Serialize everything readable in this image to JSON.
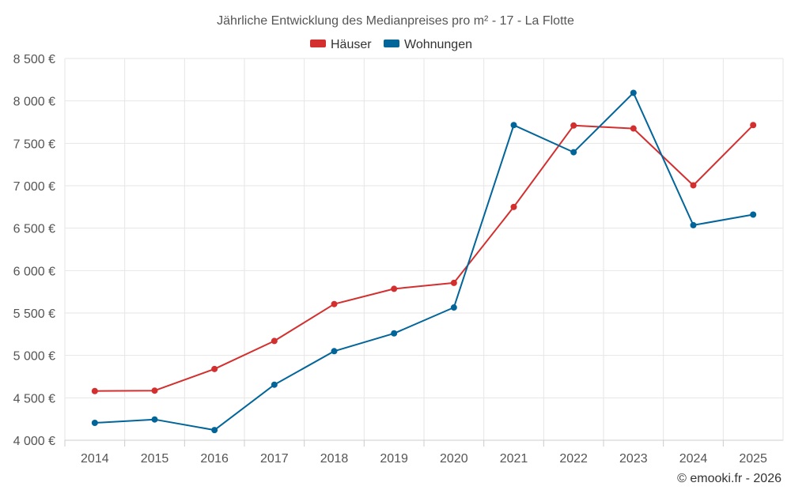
{
  "chart_data": {
    "type": "line",
    "title": "Jährliche Entwicklung des Medianpreises pro m² - 17 - La Flotte",
    "categories": [
      "2014",
      "2015",
      "2016",
      "2017",
      "2018",
      "2019",
      "2020",
      "2021",
      "2022",
      "2023",
      "2024",
      "2025"
    ],
    "series": [
      {
        "name": "Häuser",
        "color": "#d32f2f",
        "values": [
          4580,
          4585,
          4840,
          5170,
          5605,
          5785,
          5855,
          6750,
          7710,
          7675,
          7005,
          7715
        ]
      },
      {
        "name": "Wohnungen",
        "color": "#02659a",
        "values": [
          4205,
          4245,
          4120,
          4655,
          5050,
          5260,
          5565,
          7715,
          7395,
          8095,
          6535,
          6660
        ]
      }
    ],
    "ylim": [
      4000,
      8500
    ],
    "yticks": [
      4000,
      4500,
      5000,
      5500,
      6000,
      6500,
      7000,
      7500,
      8000,
      8500
    ],
    "ytick_labels": [
      "4 000 €",
      "4 500 €",
      "5 000 €",
      "5 500 €",
      "6 000 €",
      "6 500 €",
      "7 000 €",
      "7 500 €",
      "8 000 €",
      "8 500 €"
    ],
    "xlabel": "",
    "ylabel": "",
    "legend_position": "top-center",
    "grid": true
  },
  "credit": "© emooki.fr - 2026"
}
